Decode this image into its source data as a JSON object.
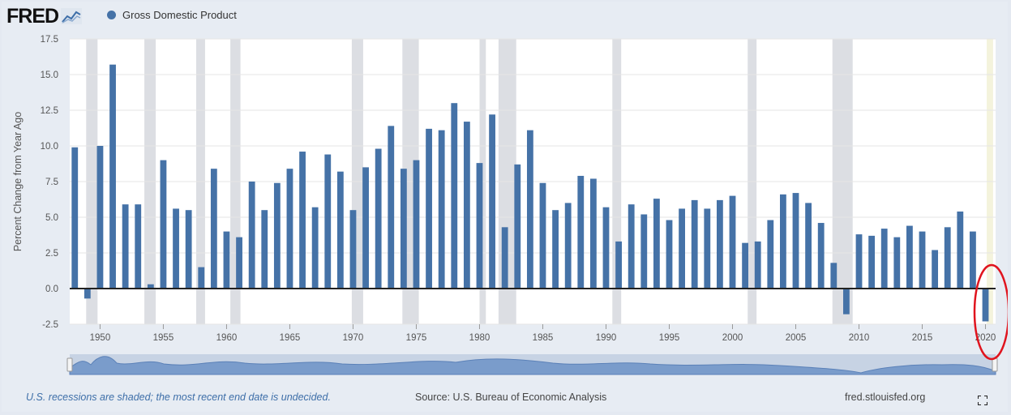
{
  "header": {
    "logo_text": "FRED",
    "series_name": "Gross Domestic Product"
  },
  "colors": {
    "bar": "#4572a7",
    "recession_shade": "#dcdee3",
    "highlight_circle": "#e0141e",
    "navigator_fill": "#7a9ccb"
  },
  "icons": {
    "logo_mark": "line-chart-icon",
    "fullscreen": "fullscreen-icon"
  },
  "footer": {
    "note": "U.S. recessions are shaded; the most recent end date is undecided.",
    "source": "Source: U.S. Bureau of Economic Analysis",
    "url": "fred.stlouisfed.org"
  },
  "chart_data": {
    "type": "bar",
    "ylabel": "Percent Change from Year Ago",
    "xlabel": "",
    "ylim": [
      -2.5,
      17.5
    ],
    "yticks": [
      "17.5",
      "15.0",
      "12.5",
      "10.0",
      "7.5",
      "5.0",
      "2.5",
      "0.0",
      "-2.5"
    ],
    "xticks": [
      "1950",
      "1955",
      "1960",
      "1965",
      "1970",
      "1975",
      "1980",
      "1985",
      "1990",
      "1995",
      "2000",
      "2005",
      "2010",
      "2015",
      "2020"
    ],
    "grid": true,
    "x": [
      1948,
      1949,
      1950,
      1951,
      1952,
      1953,
      1954,
      1955,
      1956,
      1957,
      1958,
      1959,
      1960,
      1961,
      1962,
      1963,
      1964,
      1965,
      1966,
      1967,
      1968,
      1969,
      1970,
      1971,
      1972,
      1973,
      1974,
      1975,
      1976,
      1977,
      1978,
      1979,
      1980,
      1981,
      1982,
      1983,
      1984,
      1985,
      1986,
      1987,
      1988,
      1989,
      1990,
      1991,
      1992,
      1993,
      1994,
      1995,
      1996,
      1997,
      1998,
      1999,
      2000,
      2001,
      2002,
      2003,
      2004,
      2005,
      2006,
      2007,
      2008,
      2009,
      2010,
      2011,
      2012,
      2013,
      2014,
      2015,
      2016,
      2017,
      2018,
      2019,
      2020
    ],
    "values": [
      9.9,
      -0.7,
      10.0,
      15.7,
      5.9,
      5.9,
      0.3,
      9.0,
      5.6,
      5.5,
      1.5,
      8.4,
      4.0,
      3.6,
      7.5,
      5.5,
      7.4,
      8.4,
      9.6,
      5.7,
      9.4,
      8.2,
      5.5,
      8.5,
      9.8,
      11.4,
      8.4,
      9.0,
      11.2,
      11.1,
      13.0,
      11.7,
      8.8,
      12.2,
      4.3,
      8.7,
      11.1,
      7.4,
      5.5,
      6.0,
      7.9,
      7.7,
      5.7,
      3.3,
      5.9,
      5.2,
      6.3,
      4.8,
      5.6,
      6.2,
      5.6,
      6.2,
      6.5,
      3.2,
      3.3,
      4.8,
      6.6,
      6.7,
      6.0,
      4.6,
      1.8,
      -1.8,
      3.8,
      3.7,
      4.2,
      3.6,
      4.4,
      4.0,
      2.7,
      4.3,
      5.4,
      4.0,
      -2.3
    ],
    "recessions": [
      [
        1948.9,
        1949.8
      ],
      [
        1953.5,
        1954.4
      ],
      [
        1957.6,
        1958.3
      ],
      [
        1960.3,
        1961.1
      ],
      [
        1969.9,
        1970.8
      ],
      [
        1973.9,
        1975.2
      ],
      [
        1980.0,
        1980.5
      ],
      [
        1981.5,
        1982.9
      ],
      [
        1990.5,
        1991.2
      ],
      [
        2001.2,
        2001.9
      ],
      [
        2007.9,
        2009.5
      ],
      [
        2020.1,
        2020.6
      ]
    ]
  }
}
